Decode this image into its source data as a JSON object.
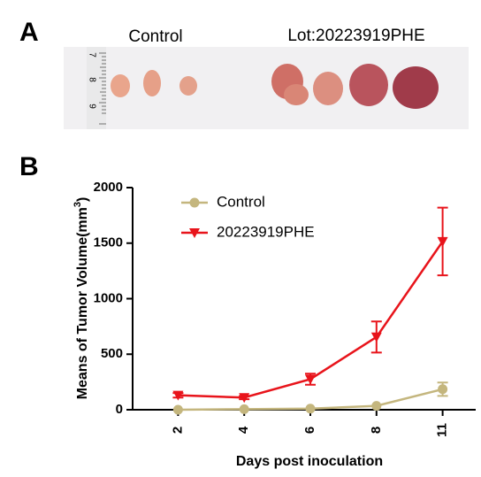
{
  "panel_a": {
    "letter": "A",
    "control_label": "Control",
    "lot_label": "Lot:20223919PHE",
    "ruler_labels": [
      "7",
      "8",
      "9"
    ]
  },
  "panel_b": {
    "letter": "B"
  },
  "chart_data": {
    "type": "line",
    "x_label": "Days post inoculation",
    "y_label": {
      "text": "Means of Tumor Volume(mm",
      "superscript": "3",
      "suffix": ")"
    },
    "categories": [
      "2",
      "4",
      "6",
      "8",
      "11"
    ],
    "series": [
      {
        "name": "Control",
        "color": "#c4b67e",
        "marker": "circle",
        "values": [
          0,
          5,
          10,
          35,
          185
        ],
        "errors": [
          0,
          0,
          0,
          0,
          60
        ]
      },
      {
        "name": "20223919PHE",
        "color": "#e8141b",
        "marker": "triangle-down",
        "values": [
          130,
          110,
          275,
          655,
          1515
        ],
        "errors": [
          20,
          15,
          50,
          140,
          305
        ]
      }
    ],
    "ylim": [
      0,
      2000
    ],
    "yticks": [
      0,
      500,
      1000,
      1500,
      2000
    ],
    "legend": "upper-left"
  }
}
